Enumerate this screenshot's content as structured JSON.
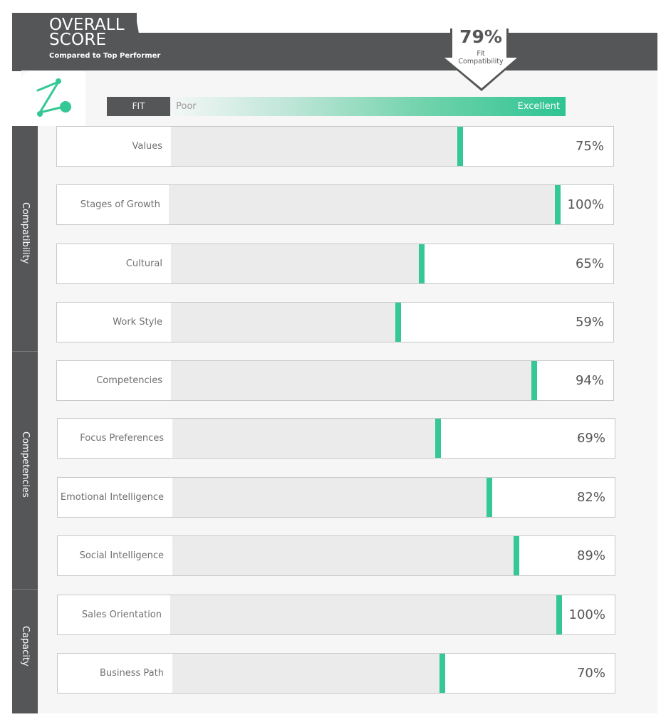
{
  "header": {
    "title_line1": "OVERALL",
    "title_line2": "SCORE",
    "subtitle": "Compared to Top Performer"
  },
  "overall": {
    "value": "79%",
    "label_line1": "Fit",
    "label_line2": "Compatibility"
  },
  "scale": {
    "fit_label": "FIT",
    "poor_label": "Poor",
    "excellent_label": "Excellent"
  },
  "categories": [
    "Compatibility",
    "Competencies",
    "Capacity"
  ],
  "logo_icon": "z-network-logo-icon",
  "colors": {
    "accent": "#34c894",
    "dark": "#555657",
    "track": "#ebebeb"
  },
  "rows": [
    {
      "label": "Values",
      "value": "75%",
      "percent": 75
    },
    {
      "label": "Stages of Growth",
      "value": "100%",
      "percent": 100
    },
    {
      "label": "Cultural",
      "value": "65%",
      "percent": 65
    },
    {
      "label": "Work Style",
      "value": "59%",
      "percent": 59
    },
    {
      "label": "Competencies",
      "value": "94%",
      "percent": 94
    },
    {
      "label": "Focus Preferences",
      "value": "69%",
      "percent": 69
    },
    {
      "label": "Emotional Intelligence",
      "value": "82%",
      "percent": 82
    },
    {
      "label": "Social Intelligence",
      "value": "89%",
      "percent": 89
    },
    {
      "label": "Sales Orientation",
      "value": "100%",
      "percent": 100
    },
    {
      "label": "Business Path",
      "value": "70%",
      "percent": 70
    }
  ]
}
